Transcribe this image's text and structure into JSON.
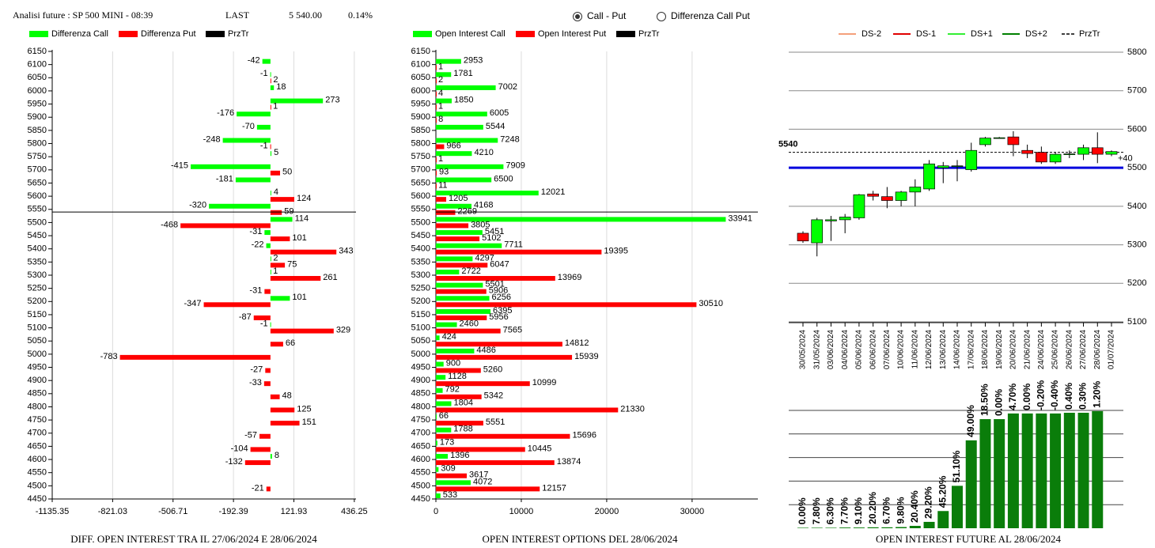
{
  "header": {
    "title": "Analisi future : SP 500 MINI - 08:39",
    "last_label": "LAST",
    "last_value": "5 540.00",
    "change": "0.14%",
    "options": [
      "Call - Put",
      "Differenza Call Put"
    ],
    "selected": 0
  },
  "chart_data": [
    {
      "type": "hbar",
      "title": "DIFF. OPEN INTEREST TRA IL 27/06/2024 E 28/06/2024",
      "y": [
        6150,
        6100,
        6050,
        6000,
        5950,
        5900,
        5850,
        5800,
        5750,
        5700,
        5650,
        5600,
        5550,
        5500,
        5450,
        5400,
        5350,
        5300,
        5250,
        5200,
        5150,
        5100,
        5050,
        5000,
        4950,
        4900,
        4850,
        4800,
        4750,
        4700,
        4650,
        4600,
        4550,
        4500,
        4450
      ],
      "ylim": [
        4450,
        6150
      ],
      "xlim": [
        -1135.35,
        445
      ],
      "xticks": [
        -1135.35,
        -821.03,
        -506.71,
        -192.39,
        121.93,
        436.25
      ],
      "grid": true,
      "series": [
        {
          "name": "Differenza Call",
          "color": "#00ff00",
          "values": [
            null,
            -42,
            -1,
            18,
            273,
            -176,
            -70,
            -248,
            5,
            -415,
            -181,
            4,
            -320,
            114,
            -31,
            -22,
            2,
            1,
            null,
            101,
            null,
            -1,
            null,
            null,
            null,
            null,
            null,
            null,
            null,
            null,
            null,
            8,
            null,
            null,
            null
          ]
        },
        {
          "name": "Differenza Put",
          "color": "#ff0000",
          "values": [
            null,
            null,
            2,
            null,
            1,
            null,
            null,
            -1,
            null,
            50,
            null,
            124,
            59,
            -468,
            101,
            343,
            75,
            261,
            -31,
            -347,
            -87,
            329,
            66,
            -783,
            -27,
            -33,
            48,
            125,
            151,
            -57,
            -104,
            -132,
            null,
            -21,
            null
          ]
        }
      ],
      "price_line": {
        "name": "PrzTr",
        "color": "#000000",
        "value": 5540
      }
    },
    {
      "type": "hbar",
      "title": "OPEN INTEREST OPTIONS DEL 28/06/2024",
      "y": [
        6150,
        6100,
        6050,
        6000,
        5950,
        5900,
        5850,
        5800,
        5750,
        5700,
        5650,
        5600,
        5550,
        5500,
        5450,
        5400,
        5350,
        5300,
        5250,
        5200,
        5150,
        5100,
        5050,
        5000,
        4950,
        4900,
        4850,
        4800,
        4750,
        4700,
        4650,
        4600,
        4550,
        4500,
        4450
      ],
      "ylim": [
        4450,
        6150
      ],
      "xlim": [
        0,
        37700
      ],
      "xticks": [
        0,
        10000,
        20000,
        30000
      ],
      "grid": true,
      "series": [
        {
          "name": "Open Interest Call",
          "color": "#00ff00",
          "values": [
            null,
            2953,
            1781,
            7002,
            1850,
            6005,
            5544,
            7248,
            4210,
            7909,
            6500,
            12021,
            4168,
            33941,
            5451,
            7711,
            4297,
            2722,
            5501,
            6256,
            6395,
            2460,
            424,
            4486,
            900,
            1128,
            792,
            1804,
            66,
            1788,
            173,
            1396,
            309,
            4072,
            533
          ]
        },
        {
          "name": "Open Interest Put",
          "color": "#ff0000",
          "values": [
            null,
            1,
            2,
            4,
            1,
            8,
            null,
            966,
            1,
            93,
            11,
            1205,
            2269,
            3805,
            5102,
            19395,
            6047,
            13969,
            5906,
            30510,
            5956,
            7565,
            14812,
            15939,
            5260,
            10999,
            5342,
            21330,
            5551,
            15696,
            10445,
            13874,
            3617,
            12157,
            null
          ]
        }
      ],
      "price_line": {
        "name": "PrzTr",
        "color": "#000000",
        "value": 5540
      }
    },
    {
      "type": "candlestick",
      "categories": [
        "30/05/2024",
        "31/05/2024",
        "03/06/2024",
        "04/06/2024",
        "05/06/2024",
        "06/06/2024",
        "07/06/2024",
        "10/06/2024",
        "11/06/2024",
        "12/06/2024",
        "13/06/2024",
        "14/06/2024",
        "17/06/2024",
        "18/06/2024",
        "19/06/2024",
        "20/06/2024",
        "21/06/2024",
        "24/06/2024",
        "25/06/2024",
        "26/06/2024",
        "27/06/2024",
        "28/06/2024",
        "01/07/2024"
      ],
      "open": [
        5330,
        5305,
        5362,
        5365,
        5370,
        5432,
        5425,
        5415,
        5437,
        5445,
        5500,
        5505,
        5495,
        5560,
        5578,
        5580,
        5545,
        5540,
        5515,
        5535,
        5535,
        5552,
        5535
      ],
      "high": [
        5335,
        5370,
        5375,
        5380,
        5432,
        5440,
        5450,
        5440,
        5470,
        5520,
        5515,
        5520,
        5565,
        5580,
        5580,
        5595,
        5560,
        5555,
        5540,
        5545,
        5560,
        5592,
        5545
      ],
      "low": [
        5305,
        5270,
        5310,
        5330,
        5365,
        5415,
        5395,
        5400,
        5400,
        5440,
        5460,
        5465,
        5490,
        5555,
        5576,
        5530,
        5525,
        5510,
        5510,
        5525,
        5520,
        5512,
        5530
      ],
      "close": [
        5310,
        5365,
        5365,
        5372,
        5430,
        5426,
        5415,
        5437,
        5450,
        5510,
        5505,
        5505,
        5545,
        5577,
        5578,
        5560,
        5537,
        5515,
        5535,
        5536,
        5552,
        5535,
        5542
      ],
      "up_color": "#00ff00",
      "down_color": "#ff0000",
      "ylim": [
        5100,
        5800
      ],
      "yticks": [
        5100,
        5200,
        5300,
        5400,
        5500,
        5600,
        5700,
        5800
      ],
      "grid": true,
      "lines": [
        {
          "name": "DS-2",
          "color": "#f4a07a"
        },
        {
          "name": "DS-1",
          "color": "#e00000"
        },
        {
          "name": "DS+1",
          "color": "#33ee33"
        },
        {
          "name": "DS+2",
          "color": "#008000"
        }
      ],
      "price_line": {
        "name": "PrzTr",
        "color": "#000000",
        "value": 5540
      },
      "reference_line": {
        "value": 5500,
        "color": "#0000dd"
      },
      "annotation": "+40"
    },
    {
      "type": "bar",
      "title": "OPEN INTEREST FUTURE AL 28/06/2024",
      "values": [
        0.02,
        0.02,
        0.02,
        0.03,
        0.03,
        0.04,
        0.04,
        0.05,
        0.1,
        0.27,
        0.73,
        1.8,
        3.73,
        4.63,
        4.63,
        4.87,
        4.87,
        4.87,
        4.87,
        4.9,
        4.9,
        4.97,
        null
      ],
      "changes": [
        0,
        7.8,
        6.3,
        7.7,
        9.1,
        20.2,
        6.7,
        9.8,
        20.4,
        29.2,
        45.2,
        51.1,
        49,
        18.5,
        0,
        4.7,
        0,
        -0.2,
        -0.4,
        0.4,
        0.3,
        1.2,
        null
      ],
      "change_labels": [
        "0.00%",
        "7.80%",
        "6.30%",
        "7.70%",
        "9.10%",
        "20.20%",
        "6.70%",
        "9.80%",
        "20.40%",
        "29.20%",
        "45.20%",
        "51.10%",
        "49.00%",
        "18.50%",
        "0.00%",
        "4.70%",
        "0.00%",
        "-0.20%",
        "-0.40%",
        "0.40%",
        "0.30%",
        "1.20%",
        null
      ],
      "color": "#0a7d0a",
      "ylim": [
        0,
        5
      ],
      "grid_levels": [
        1,
        2,
        3,
        4,
        5
      ]
    }
  ]
}
